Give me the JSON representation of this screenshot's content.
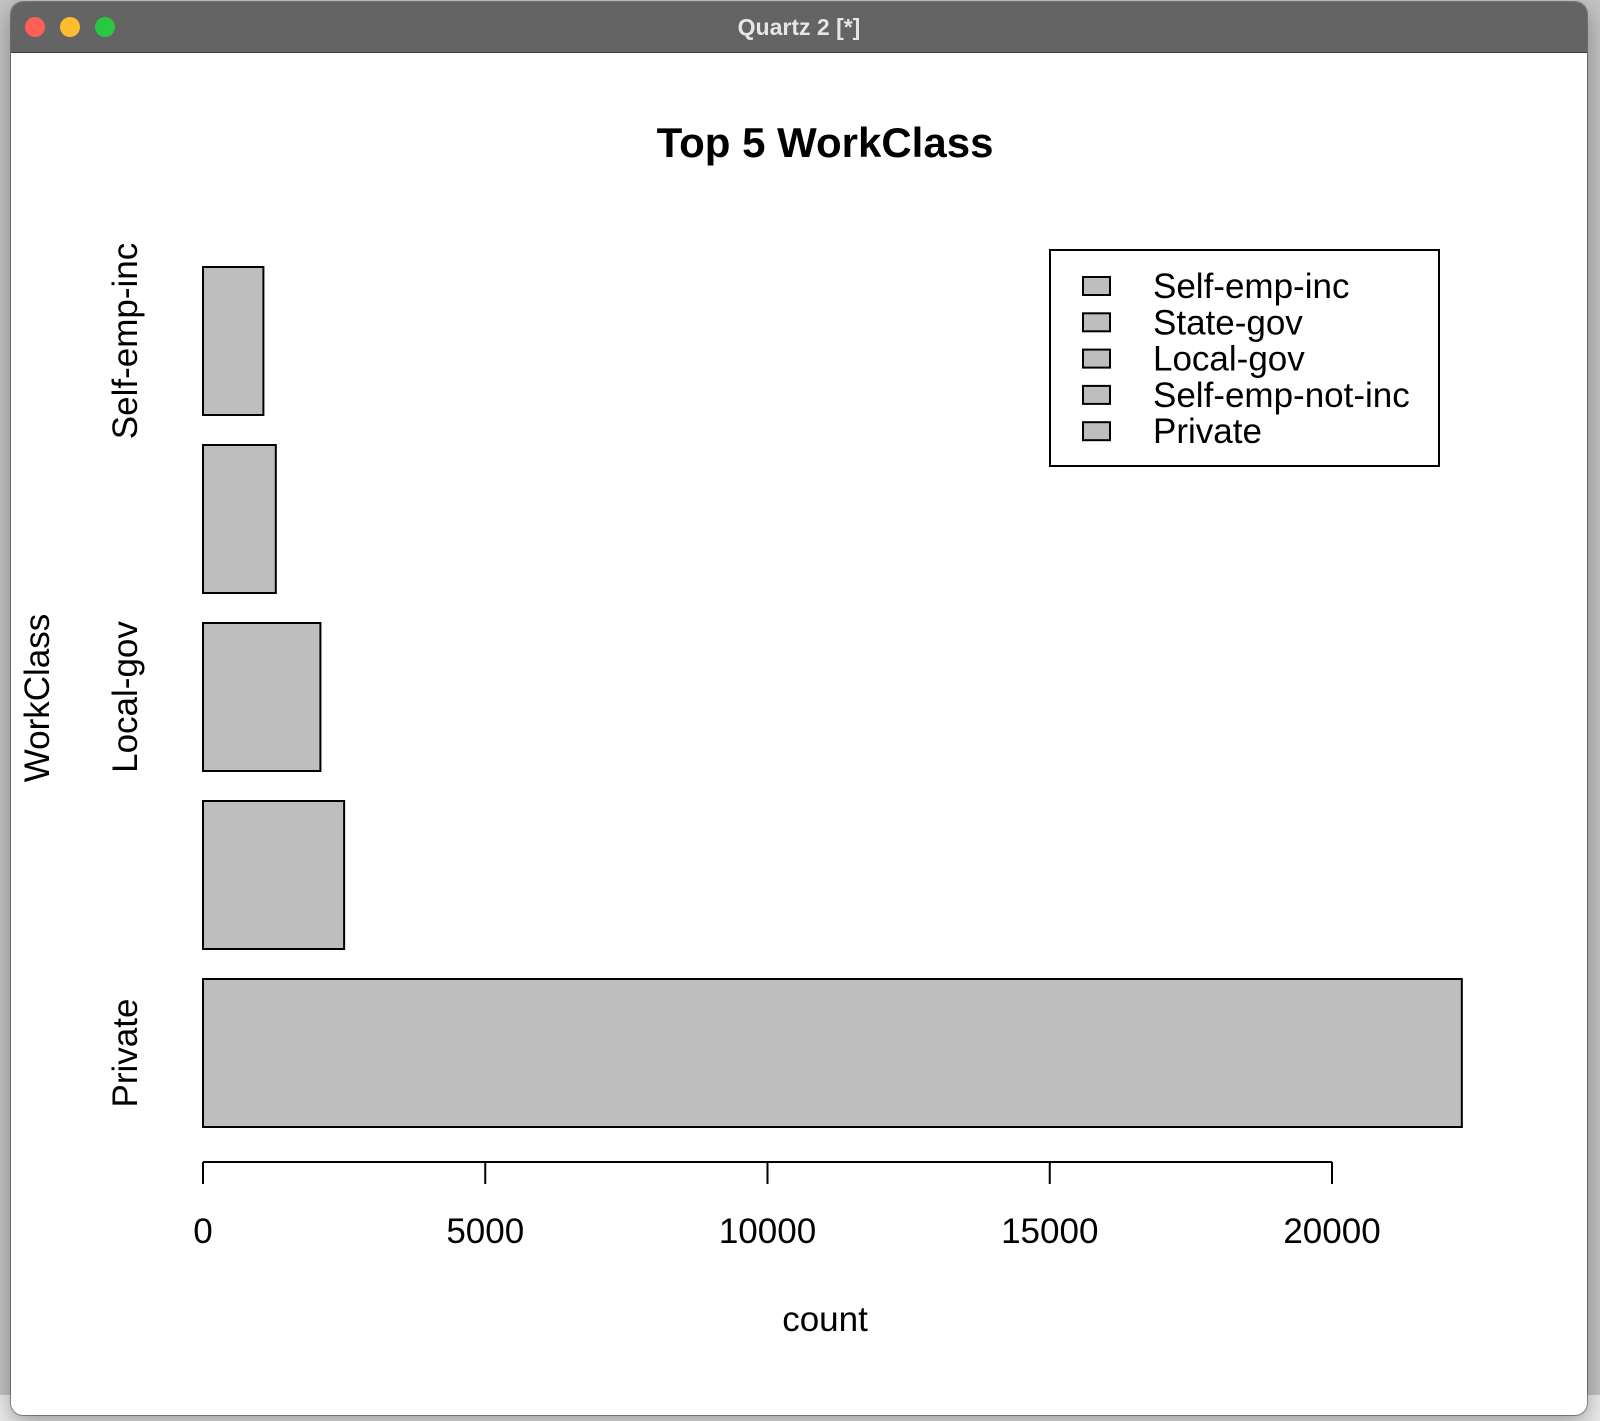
{
  "window": {
    "title": "Quartz 2 [*]",
    "buttons": {
      "close": "close",
      "minimize": "minimize",
      "zoom": "zoom"
    },
    "colors": {
      "close": "#fe5f57",
      "minimize": "#febc2e",
      "zoom": "#28c840",
      "titlebar": "#646464"
    }
  },
  "chart_data": {
    "type": "bar",
    "orientation": "horizontal",
    "title": "Top 5 WorkClass",
    "xlabel": "count",
    "ylabel": "WorkClass",
    "categories": [
      "Private",
      "Self-emp-not-inc",
      "Local-gov",
      "State-gov",
      "Self-emp-inc"
    ],
    "y_tick_labels_shown": [
      "Private",
      "Local-gov",
      "Self-emp-inc"
    ],
    "values": [
      22300,
      2500,
      2080,
      1290,
      1070
    ],
    "x_ticks": [
      0,
      5000,
      10000,
      15000,
      20000
    ],
    "xlim": [
      0,
      22300
    ],
    "bar_fill": "#bebebe",
    "bar_stroke": "#000000",
    "grid": false,
    "legend": {
      "position": "top-right",
      "entries": [
        "Self-emp-inc",
        "State-gov",
        "Local-gov",
        "Self-emp-not-inc",
        "Private"
      ]
    }
  }
}
